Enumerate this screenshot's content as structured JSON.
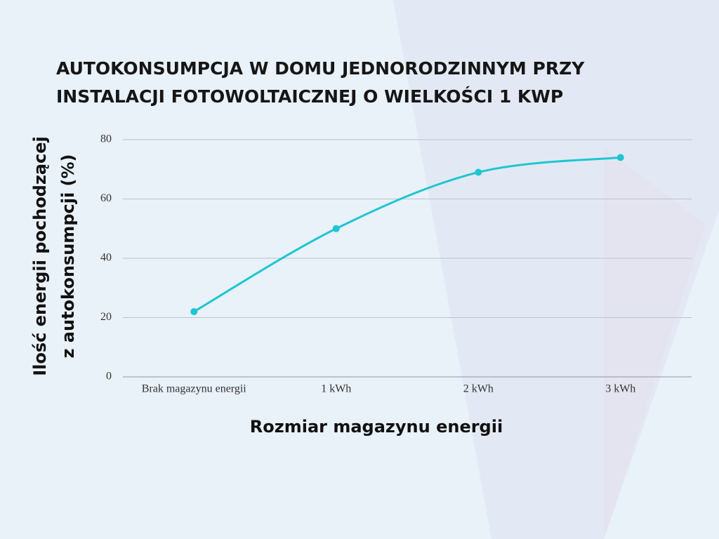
{
  "chart_data": {
    "type": "line",
    "title": [
      "AUTOKONSUMPCJA W DOMU JEDNORODZINNYM PRZY",
      "INSTALACJI FOTOWOLTAICZNEJ O WIELKOŚCI 1 KWP"
    ],
    "xlabel": "Rozmiar magazynu energii",
    "ylabel": [
      "Ilość energii pochodzącej",
      "z autokonsumpcji (%)"
    ],
    "categories": [
      "Brak magazynu energii",
      "1 kWh",
      "2 kWh",
      "3 kWh"
    ],
    "values": [
      22,
      50,
      69,
      74
    ],
    "color": "#1ec6d2",
    "ylim": [
      0,
      80
    ],
    "yticks": [
      0,
      20,
      40,
      60,
      80
    ],
    "grid": true
  }
}
